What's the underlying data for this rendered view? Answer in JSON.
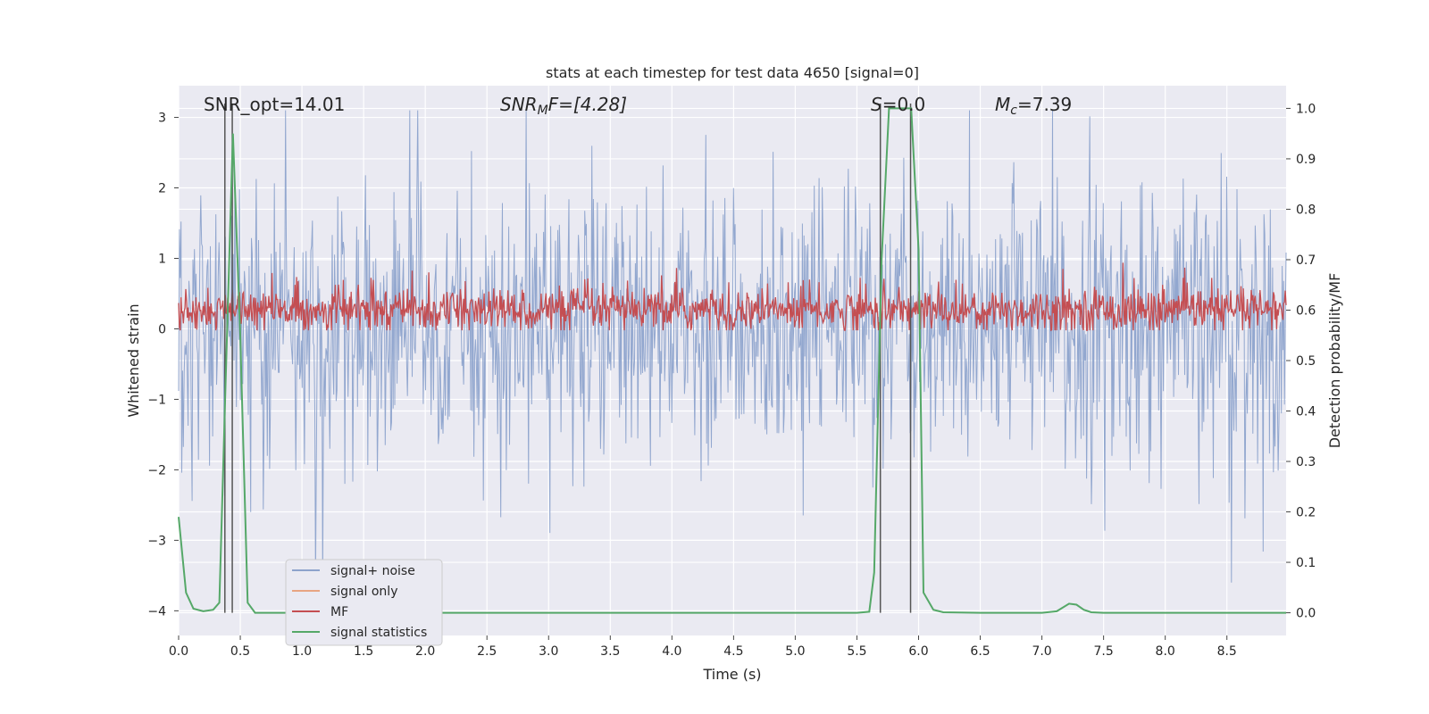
{
  "chart_data": {
    "type": "line",
    "title": "stats at each timestep for test data 4650 [signal=0]",
    "xlabel": "Time (s)",
    "ylabel_left": "Whitened strain",
    "ylabel_right": "Detection probability/MF",
    "xlim": [
      0.0,
      8.98
    ],
    "ylim_left": [
      -4.35,
      3.45
    ],
    "ylim_right": [
      -0.045,
      1.045
    ],
    "x_ticks": [
      "0.0",
      "0.5",
      "1.0",
      "1.5",
      "2.0",
      "2.5",
      "3.0",
      "3.5",
      "4.0",
      "4.5",
      "5.0",
      "5.5",
      "6.0",
      "6.5",
      "7.0",
      "7.5",
      "8.0",
      "8.5"
    ],
    "y_left_ticks": [
      "3",
      "2",
      "1",
      "0",
      "−1",
      "−2",
      "−3",
      "−4"
    ],
    "y_right_ticks": [
      "1.0",
      "0.9",
      "0.8",
      "0.7",
      "0.6",
      "0.5",
      "0.4",
      "0.3",
      "0.2",
      "0.1",
      "0.0"
    ],
    "annotations": {
      "snr_opt": "SNR_opt=14.01",
      "snr_mf_sym": "SNR",
      "snr_mf_sub": "M",
      "snr_mf_rest": "F=[4.28]",
      "s_sym": "S",
      "s_rest": "=0.0",
      "mc_sym": "M",
      "mc_sub": "c",
      "mc_rest": "=7.39"
    },
    "vertical_lines": [
      0.375,
      0.435,
      5.69,
      5.935
    ],
    "series": [
      {
        "name": "signal+ noise",
        "axis": "left",
        "color": "#8da3cc",
        "description": "whitened strain noise, roughly symmetric about 0 with envelope about +/-1.3 and spikes to about +/-3.1",
        "range": [
          -3.6,
          3.1
        ]
      },
      {
        "name": "signal only",
        "axis": "left",
        "color": "#e8a582",
        "values": []
      },
      {
        "name": "MF",
        "axis": "right",
        "color": "#c44e52",
        "description": "matched filter output fluctuating around 0.6 on right axis",
        "baseline": 0.6,
        "range": [
          0.56,
          0.71
        ]
      },
      {
        "name": "signal statistics",
        "axis": "right",
        "color": "#55a868",
        "x": [
          0.0,
          0.06,
          0.12,
          0.2,
          0.28,
          0.33,
          0.38,
          0.44,
          0.5,
          0.56,
          0.62,
          0.7,
          1.0,
          2.0,
          3.0,
          4.0,
          5.0,
          5.5,
          5.6,
          5.64,
          5.7,
          5.76,
          5.82,
          5.88,
          5.94,
          6.0,
          6.04,
          6.12,
          6.2,
          6.5,
          7.0,
          7.12,
          7.22,
          7.28,
          7.34,
          7.4,
          7.5,
          8.0,
          8.98
        ],
        "values": [
          0.19,
          0.04,
          0.008,
          0.003,
          0.006,
          0.02,
          0.45,
          0.95,
          0.55,
          0.02,
          0.0,
          0.0,
          0.0,
          0.0,
          0.0,
          0.0,
          0.0,
          0.0,
          0.002,
          0.08,
          0.7,
          1.0,
          1.0,
          1.0,
          1.0,
          0.72,
          0.04,
          0.006,
          0.001,
          0.0,
          0.0,
          0.003,
          0.018,
          0.016,
          0.006,
          0.001,
          0.0,
          0.0,
          0.0
        ]
      }
    ],
    "legend": {
      "placement": "lower-left",
      "entries": [
        "signal+ noise",
        "signal only",
        "MF",
        "signal statistics"
      ]
    },
    "colors": {
      "background": "#eaeaf2",
      "grid": "#ffffff",
      "vline": "#555555"
    }
  }
}
